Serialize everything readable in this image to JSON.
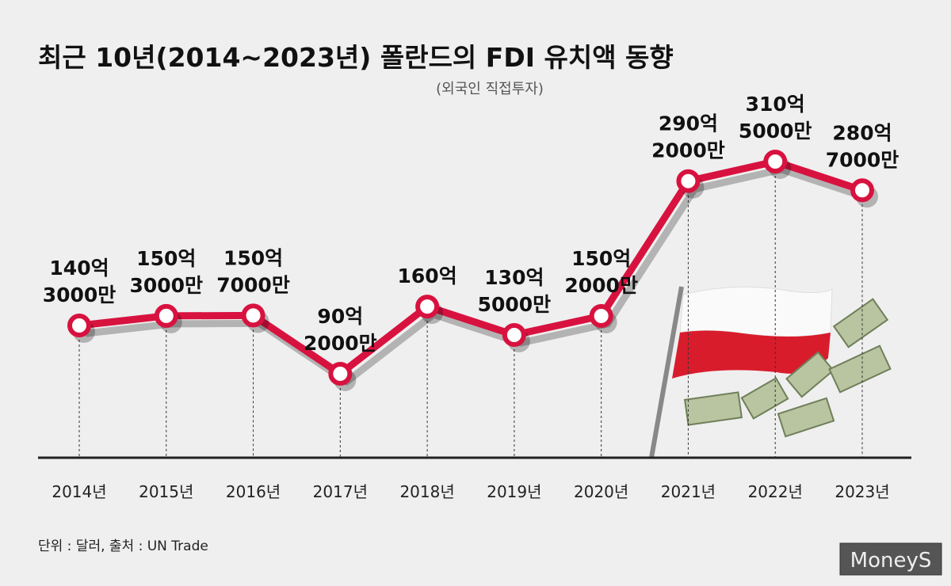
{
  "chart_data": {
    "type": "line",
    "title": "최근 10년(2014~2023년) 폴란드의 FDI 유치액 동향",
    "subtitle": "(외국인 직접투자)",
    "categories": [
      "2014년",
      "2015년",
      "2016년",
      "2017년",
      "2018년",
      "2019년",
      "2020년",
      "2021년",
      "2022년",
      "2023년"
    ],
    "values": [
      14030000000,
      15030000000,
      15070000000,
      9020000000,
      16000000000,
      13050000000,
      15020000000,
      29020000000,
      31050000000,
      28070000000
    ],
    "value_labels": [
      [
        "140억",
        "3000만"
      ],
      [
        "150억",
        "3000만"
      ],
      [
        "150억",
        "7000만"
      ],
      [
        "90억",
        "2000만"
      ],
      [
        "160억"
      ],
      [
        "130억",
        "5000만"
      ],
      [
        "150억",
        "2000만"
      ],
      [
        "290억",
        "2000만"
      ],
      [
        "310억",
        "5000만"
      ],
      [
        "280억",
        "7000만"
      ]
    ],
    "color": "#d8123f",
    "note": "단위 : 달러, 출처 : UN Trade",
    "watermark": "MoneyS"
  }
}
